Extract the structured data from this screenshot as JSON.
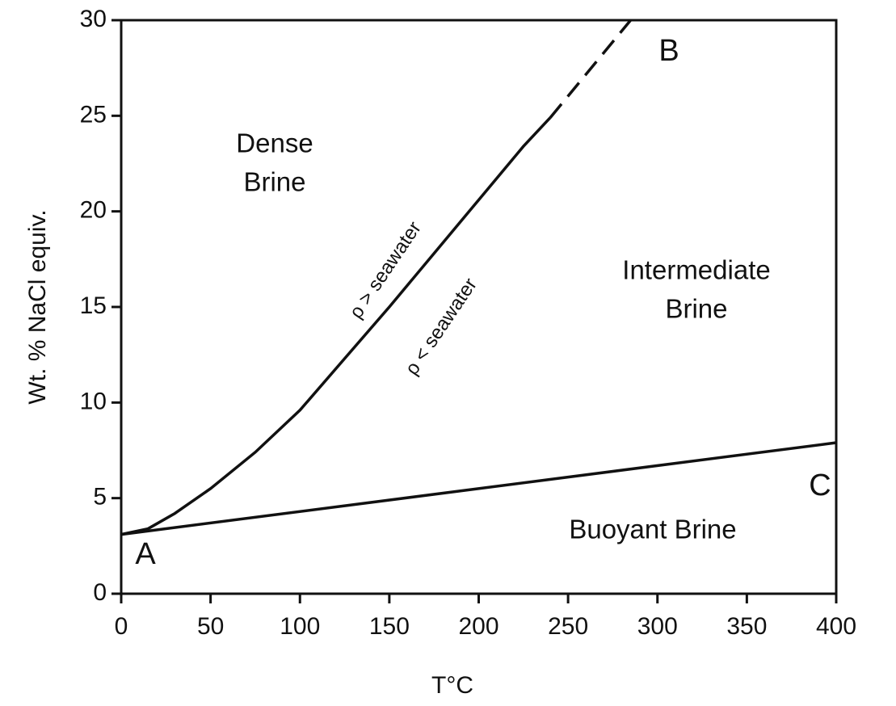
{
  "chart_data": {
    "type": "line",
    "xlabel": "T°C",
    "ylabel": "Wt. % NaCl equiv.",
    "xlim": [
      0,
      400
    ],
    "ylim": [
      0,
      30
    ],
    "xticks": [
      0,
      50,
      100,
      150,
      200,
      250,
      300,
      350,
      400
    ],
    "yticks": [
      0,
      5,
      10,
      15,
      20,
      25,
      30
    ],
    "series": [
      {
        "color": "#111111",
        "dash": false,
        "x": [
          0,
          15,
          30,
          50,
          75,
          100,
          125,
          150,
          175,
          200,
          225,
          240
        ],
        "values": [
          3.1,
          3.4,
          4.2,
          5.5,
          7.4,
          9.6,
          12.3,
          15.0,
          17.8,
          20.6,
          23.4,
          24.9
        ]
      },
      {
        "color": "#111111",
        "dash": true,
        "x": [
          240,
          285
        ],
        "values": [
          24.9,
          30
        ]
      },
      {
        "color": "#111111",
        "dash": false,
        "x": [
          0,
          400
        ],
        "values": [
          3.1,
          7.9
        ]
      }
    ],
    "annotations": {
      "dense": "Dense",
      "dense_brine": "Brine",
      "intermediate": "Intermediate",
      "intermediate_brine": "Brine",
      "buoyant": "Buoyant Brine",
      "a": "A",
      "b": "B",
      "c": "C",
      "above": "ρ > seawater",
      "below": "ρ < seawater"
    }
  }
}
